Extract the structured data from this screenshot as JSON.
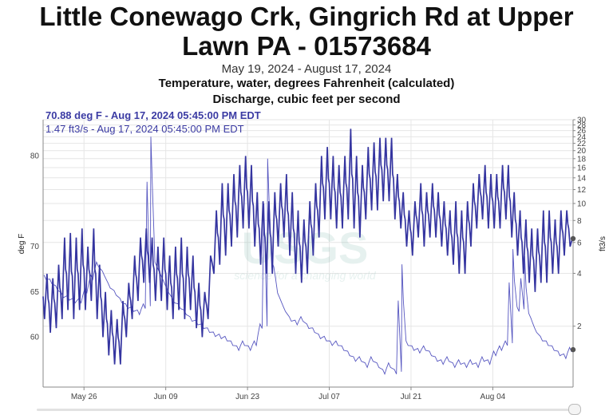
{
  "header": {
    "title_line1": "Little Conewago Crk, Gingrich Rd at Upper",
    "title_line2": "Lawn PA - 01573684",
    "date_range": "May 19, 2024 - August 17, 2024",
    "param1": "Temperature, water, degrees Fahrenheit (calculated)",
    "param2": "Discharge, cubic feet per second"
  },
  "readout": {
    "temp": "70.88 deg F - Aug 17, 2024 05:45:00 PM EDT",
    "flow": "1.47 ft3/s - Aug 17, 2024 05:45:00 PM EDT"
  },
  "watermark": {
    "logo": "USGS",
    "tagline": "science for a changing world"
  },
  "colors": {
    "temp_line": "#3535a0",
    "flow_line": "#5656c0",
    "grid": "#e6e6e6"
  },
  "chart_data": {
    "type": "line",
    "x_range": [
      "2024-05-19",
      "2024-08-17"
    ],
    "x_ticks": [
      {
        "date": "2024-05-26",
        "label": "May 26"
      },
      {
        "date": "2024-06-09",
        "label": "Jun 09"
      },
      {
        "date": "2024-06-23",
        "label": "Jun 23"
      },
      {
        "date": "2024-07-07",
        "label": "Jul 07"
      },
      {
        "date": "2024-07-21",
        "label": "Jul 21"
      },
      {
        "date": "2024-08-04",
        "label": "Aug 04"
      }
    ],
    "y_left": {
      "label": "deg F",
      "ticks": [
        60,
        65,
        70,
        80
      ],
      "range": [
        54.5,
        84
      ]
    },
    "y_right": {
      "label": "ft3/s",
      "scale": "log",
      "ticks": [
        2,
        4,
        6,
        8,
        10,
        12,
        14,
        16,
        18,
        20,
        22,
        24,
        26,
        28,
        30
      ],
      "range": [
        0.9,
        30
      ]
    },
    "grid": true,
    "series": [
      {
        "name": "Temperature, water, degrees Fahrenheit (calculated)",
        "axis": "left",
        "daily": [
          {
            "date": "2024-05-19",
            "min": 62,
            "max": 67
          },
          {
            "date": "2024-05-20",
            "min": 60.5,
            "max": 66.5
          },
          {
            "date": "2024-05-21",
            "min": 61,
            "max": 68
          },
          {
            "date": "2024-05-22",
            "min": 62,
            "max": 71
          },
          {
            "date": "2024-05-23",
            "min": 63,
            "max": 71.5
          },
          {
            "date": "2024-05-24",
            "min": 62,
            "max": 71
          },
          {
            "date": "2024-05-25",
            "min": 63,
            "max": 72
          },
          {
            "date": "2024-05-26",
            "min": 63,
            "max": 70
          },
          {
            "date": "2024-05-27",
            "min": 64,
            "max": 72
          },
          {
            "date": "2024-05-28",
            "min": 62,
            "max": 68
          },
          {
            "date": "2024-05-29",
            "min": 60,
            "max": 65
          },
          {
            "date": "2024-05-30",
            "min": 58,
            "max": 63
          },
          {
            "date": "2024-05-31",
            "min": 57,
            "max": 62
          },
          {
            "date": "2024-06-01",
            "min": 57,
            "max": 64
          },
          {
            "date": "2024-06-02",
            "min": 60,
            "max": 66
          },
          {
            "date": "2024-06-03",
            "min": 62,
            "max": 69
          },
          {
            "date": "2024-06-04",
            "min": 64,
            "max": 71
          },
          {
            "date": "2024-06-05",
            "min": 66,
            "max": 72
          },
          {
            "date": "2024-06-06",
            "min": 66,
            "max": 71
          },
          {
            "date": "2024-06-07",
            "min": 64,
            "max": 70
          },
          {
            "date": "2024-06-08",
            "min": 64,
            "max": 71
          },
          {
            "date": "2024-06-09",
            "min": 63,
            "max": 69
          },
          {
            "date": "2024-06-10",
            "min": 62,
            "max": 70
          },
          {
            "date": "2024-06-11",
            "min": 63,
            "max": 71
          },
          {
            "date": "2024-06-12",
            "min": 62,
            "max": 70
          },
          {
            "date": "2024-06-13",
            "min": 63,
            "max": 69
          },
          {
            "date": "2024-06-14",
            "min": 61,
            "max": 66
          },
          {
            "date": "2024-06-15",
            "min": 60,
            "max": 65
          },
          {
            "date": "2024-06-16",
            "min": 62,
            "max": 69
          },
          {
            "date": "2024-06-17",
            "min": 67,
            "max": 74
          },
          {
            "date": "2024-06-18",
            "min": 68,
            "max": 77
          },
          {
            "date": "2024-06-19",
            "min": 69,
            "max": 77
          },
          {
            "date": "2024-06-20",
            "min": 70,
            "max": 78
          },
          {
            "date": "2024-06-21",
            "min": 71,
            "max": 79
          },
          {
            "date": "2024-06-22",
            "min": 72,
            "max": 80
          },
          {
            "date": "2024-06-23",
            "min": 72,
            "max": 79
          },
          {
            "date": "2024-06-24",
            "min": 70,
            "max": 76
          },
          {
            "date": "2024-06-25",
            "min": 68,
            "max": 75
          },
          {
            "date": "2024-06-26",
            "min": 67,
            "max": 75
          },
          {
            "date": "2024-06-27",
            "min": 67,
            "max": 76
          },
          {
            "date": "2024-06-28",
            "min": 70,
            "max": 77
          },
          {
            "date": "2024-06-29",
            "min": 71,
            "max": 78
          },
          {
            "date": "2024-06-30",
            "min": 69,
            "max": 76
          },
          {
            "date": "2024-07-01",
            "min": 67,
            "max": 74
          },
          {
            "date": "2024-07-02",
            "min": 66,
            "max": 73
          },
          {
            "date": "2024-07-03",
            "min": 67,
            "max": 75
          },
          {
            "date": "2024-07-04",
            "min": 69,
            "max": 77
          },
          {
            "date": "2024-07-05",
            "min": 71,
            "max": 80
          },
          {
            "date": "2024-07-06",
            "min": 73,
            "max": 81
          },
          {
            "date": "2024-07-07",
            "min": 73,
            "max": 80
          },
          {
            "date": "2024-07-08",
            "min": 72,
            "max": 79
          },
          {
            "date": "2024-07-09",
            "min": 72,
            "max": 80
          },
          {
            "date": "2024-07-10",
            "min": 73,
            "max": 83
          },
          {
            "date": "2024-07-11",
            "min": 72,
            "max": 80
          },
          {
            "date": "2024-07-12",
            "min": 71,
            "max": 79
          },
          {
            "date": "2024-07-13",
            "min": 73,
            "max": 81
          },
          {
            "date": "2024-07-14",
            "min": 74,
            "max": 81.5
          },
          {
            "date": "2024-07-15",
            "min": 74,
            "max": 82
          },
          {
            "date": "2024-07-16",
            "min": 75,
            "max": 82
          },
          {
            "date": "2024-07-17",
            "min": 75,
            "max": 82
          },
          {
            "date": "2024-07-18",
            "min": 73,
            "max": 78
          },
          {
            "date": "2024-07-19",
            "min": 72,
            "max": 76
          },
          {
            "date": "2024-07-20",
            "min": 70,
            "max": 74
          },
          {
            "date": "2024-07-21",
            "min": 69,
            "max": 75
          },
          {
            "date": "2024-07-22",
            "min": 71,
            "max": 77
          },
          {
            "date": "2024-07-23",
            "min": 70,
            "max": 76
          },
          {
            "date": "2024-07-24",
            "min": 71,
            "max": 77
          },
          {
            "date": "2024-07-25",
            "min": 71,
            "max": 76
          },
          {
            "date": "2024-07-26",
            "min": 70,
            "max": 75
          },
          {
            "date": "2024-07-27",
            "min": 69,
            "max": 74
          },
          {
            "date": "2024-07-28",
            "min": 68,
            "max": 75
          },
          {
            "date": "2024-07-29",
            "min": 67,
            "max": 74
          },
          {
            "date": "2024-07-30",
            "min": 67,
            "max": 75
          },
          {
            "date": "2024-07-31",
            "min": 70,
            "max": 77
          },
          {
            "date": "2024-08-01",
            "min": 72,
            "max": 78
          },
          {
            "date": "2024-08-02",
            "min": 73,
            "max": 79
          },
          {
            "date": "2024-08-03",
            "min": 72,
            "max": 78
          },
          {
            "date": "2024-08-04",
            "min": 72,
            "max": 78
          },
          {
            "date": "2024-08-05",
            "min": 72,
            "max": 79
          },
          {
            "date": "2024-08-06",
            "min": 73,
            "max": 79
          },
          {
            "date": "2024-08-07",
            "min": 71,
            "max": 76
          },
          {
            "date": "2024-08-08",
            "min": 69,
            "max": 74
          },
          {
            "date": "2024-08-09",
            "min": 67,
            "max": 73
          },
          {
            "date": "2024-08-10",
            "min": 66,
            "max": 72
          },
          {
            "date": "2024-08-11",
            "min": 65,
            "max": 72
          },
          {
            "date": "2024-08-12",
            "min": 66,
            "max": 74
          },
          {
            "date": "2024-08-13",
            "min": 66,
            "max": 74
          },
          {
            "date": "2024-08-14",
            "min": 67,
            "max": 73
          },
          {
            "date": "2024-08-15",
            "min": 67,
            "max": 74
          },
          {
            "date": "2024-08-16",
            "min": 69,
            "max": 74
          },
          {
            "date": "2024-08-17",
            "min": 70,
            "max": 71
          }
        ],
        "last_value": 70.88
      },
      {
        "name": "Discharge, cubic feet per second",
        "axis": "right",
        "daily": [
          {
            "date": "2024-05-19",
            "value": 3.8
          },
          {
            "date": "2024-05-20",
            "value": 3.6
          },
          {
            "date": "2024-05-21",
            "value": 3.3
          },
          {
            "date": "2024-05-22",
            "value": 3.0
          },
          {
            "date": "2024-05-23",
            "value": 2.9
          },
          {
            "date": "2024-05-24",
            "value": 2.8
          },
          {
            "date": "2024-05-25",
            "value": 2.8
          },
          {
            "date": "2024-05-26",
            "value": 3.2
          },
          {
            "date": "2024-05-27",
            "value": 3.8
          },
          {
            "date": "2024-05-28",
            "value": 4.5
          },
          {
            "date": "2024-05-29",
            "value": 4.0
          },
          {
            "date": "2024-05-30",
            "value": 3.4
          },
          {
            "date": "2024-05-31",
            "value": 3.1
          },
          {
            "date": "2024-06-01",
            "value": 2.8
          },
          {
            "date": "2024-06-02",
            "value": 2.6
          },
          {
            "date": "2024-06-03",
            "value": 2.5
          },
          {
            "date": "2024-06-04",
            "value": 2.4
          },
          {
            "date": "2024-06-05",
            "value": 2.6
          },
          {
            "date": "2024-06-06",
            "value": 24
          },
          {
            "date": "2024-06-07",
            "value": 4.5
          },
          {
            "date": "2024-06-08",
            "value": 3.8
          },
          {
            "date": "2024-06-09",
            "value": 3.2
          },
          {
            "date": "2024-06-10",
            "value": 2.8
          },
          {
            "date": "2024-06-11",
            "value": 2.6
          },
          {
            "date": "2024-06-12",
            "value": 2.4
          },
          {
            "date": "2024-06-13",
            "value": 2.2
          },
          {
            "date": "2024-06-14",
            "value": 2.1
          },
          {
            "date": "2024-06-15",
            "value": 2.0
          },
          {
            "date": "2024-06-16",
            "value": 1.9
          },
          {
            "date": "2024-06-17",
            "value": 1.8
          },
          {
            "date": "2024-06-18",
            "value": 1.75
          },
          {
            "date": "2024-06-19",
            "value": 1.7
          },
          {
            "date": "2024-06-20",
            "value": 1.6
          },
          {
            "date": "2024-06-21",
            "value": 1.5
          },
          {
            "date": "2024-06-22",
            "value": 1.6
          },
          {
            "date": "2024-06-23",
            "value": 1.5
          },
          {
            "date": "2024-06-24",
            "value": 1.6
          },
          {
            "date": "2024-06-25",
            "value": 2.0
          },
          {
            "date": "2024-06-26",
            "value": 18
          },
          {
            "date": "2024-06-27",
            "value": 4.5
          },
          {
            "date": "2024-06-28",
            "value": 3.0
          },
          {
            "date": "2024-06-29",
            "value": 2.5
          },
          {
            "date": "2024-06-30",
            "value": 2.2
          },
          {
            "date": "2024-07-01",
            "value": 2.1
          },
          {
            "date": "2024-07-02",
            "value": 2.2
          },
          {
            "date": "2024-07-03",
            "value": 2.0
          },
          {
            "date": "2024-07-04",
            "value": 1.9
          },
          {
            "date": "2024-07-05",
            "value": 1.75
          },
          {
            "date": "2024-07-06",
            "value": 1.7
          },
          {
            "date": "2024-07-07",
            "value": 1.6
          },
          {
            "date": "2024-07-08",
            "value": 1.6
          },
          {
            "date": "2024-07-09",
            "value": 1.5
          },
          {
            "date": "2024-07-10",
            "value": 1.4
          },
          {
            "date": "2024-07-11",
            "value": 1.3
          },
          {
            "date": "2024-07-12",
            "value": 1.3
          },
          {
            "date": "2024-07-13",
            "value": 1.2
          },
          {
            "date": "2024-07-14",
            "value": 1.3
          },
          {
            "date": "2024-07-15",
            "value": 1.2
          },
          {
            "date": "2024-07-16",
            "value": 1.1
          },
          {
            "date": "2024-07-17",
            "value": 1.2
          },
          {
            "date": "2024-07-18",
            "value": 1.1
          },
          {
            "date": "2024-07-19",
            "value": 4.5
          },
          {
            "date": "2024-07-20",
            "value": 1.6
          },
          {
            "date": "2024-07-21",
            "value": 1.5
          },
          {
            "date": "2024-07-22",
            "value": 1.45
          },
          {
            "date": "2024-07-23",
            "value": 1.5
          },
          {
            "date": "2024-07-24",
            "value": 1.4
          },
          {
            "date": "2024-07-25",
            "value": 1.3
          },
          {
            "date": "2024-07-26",
            "value": 1.25
          },
          {
            "date": "2024-07-27",
            "value": 1.3
          },
          {
            "date": "2024-07-28",
            "value": 1.2
          },
          {
            "date": "2024-07-29",
            "value": 1.25
          },
          {
            "date": "2024-07-30",
            "value": 1.2
          },
          {
            "date": "2024-07-31",
            "value": 1.25
          },
          {
            "date": "2024-08-01",
            "value": 1.2
          },
          {
            "date": "2024-08-02",
            "value": 1.3
          },
          {
            "date": "2024-08-03",
            "value": 1.25
          },
          {
            "date": "2024-08-04",
            "value": 1.4
          },
          {
            "date": "2024-08-05",
            "value": 1.5
          },
          {
            "date": "2024-08-06",
            "value": 1.6
          },
          {
            "date": "2024-08-07",
            "value": 5.5
          },
          {
            "date": "2024-08-08",
            "value": 2.5
          },
          {
            "date": "2024-08-09",
            "value": 5.0
          },
          {
            "date": "2024-08-10",
            "value": 2.3
          },
          {
            "date": "2024-08-11",
            "value": 1.9
          },
          {
            "date": "2024-08-12",
            "value": 1.7
          },
          {
            "date": "2024-08-13",
            "value": 1.6
          },
          {
            "date": "2024-08-14",
            "value": 1.5
          },
          {
            "date": "2024-08-15",
            "value": 1.4
          },
          {
            "date": "2024-08-16",
            "value": 1.35
          },
          {
            "date": "2024-08-17",
            "value": 1.47
          }
        ],
        "last_value": 1.47
      }
    ]
  }
}
